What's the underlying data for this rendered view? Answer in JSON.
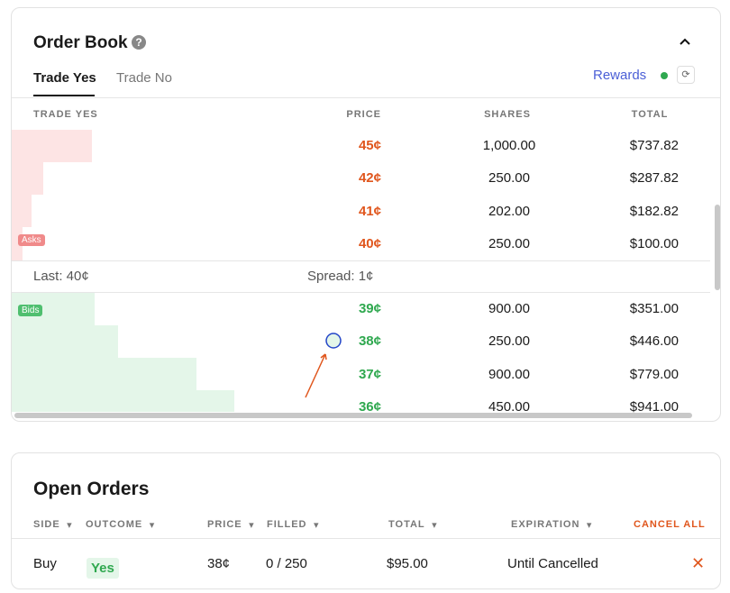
{
  "order_book": {
    "title": "Order Book",
    "tabs": [
      "Trade Yes",
      "Trade No"
    ],
    "rewards": "Rewards",
    "columns": [
      "TRADE YES",
      "PRICE",
      "SHARES",
      "TOTAL"
    ],
    "asks_label": "Asks",
    "asks": [
      {
        "price": "45¢",
        "shares": "1,000.00",
        "total": "$737.82"
      },
      {
        "price": "42¢",
        "shares": "250.00",
        "total": "$287.82"
      },
      {
        "price": "41¢",
        "shares": "202.00",
        "total": "$182.82"
      },
      {
        "price": "40¢",
        "shares": "250.00",
        "total": "$100.00"
      }
    ],
    "last": "Last: 40¢",
    "spread": "Spread: 1¢",
    "bids_label": "Bids",
    "bids": [
      {
        "price": "39¢",
        "shares": "900.00",
        "total": "$351.00"
      },
      {
        "price": "38¢",
        "shares": "250.00",
        "total": "$446.00"
      },
      {
        "price": "37¢",
        "shares": "900.00",
        "total": "$779.00"
      },
      {
        "price": "36¢",
        "shares": "450.00",
        "total": "$941.00"
      }
    ]
  },
  "open_orders": {
    "title": "Open Orders",
    "columns": [
      "SIDE",
      "OUTCOME",
      "PRICE",
      "FILLED",
      "TOTAL",
      "EXPIRATION"
    ],
    "cancel_all": "CANCEL ALL",
    "rows": [
      [
        "Buy",
        "Yes",
        "38¢",
        "0 / 250",
        "$95.00",
        "Until Cancelled"
      ]
    ]
  }
}
